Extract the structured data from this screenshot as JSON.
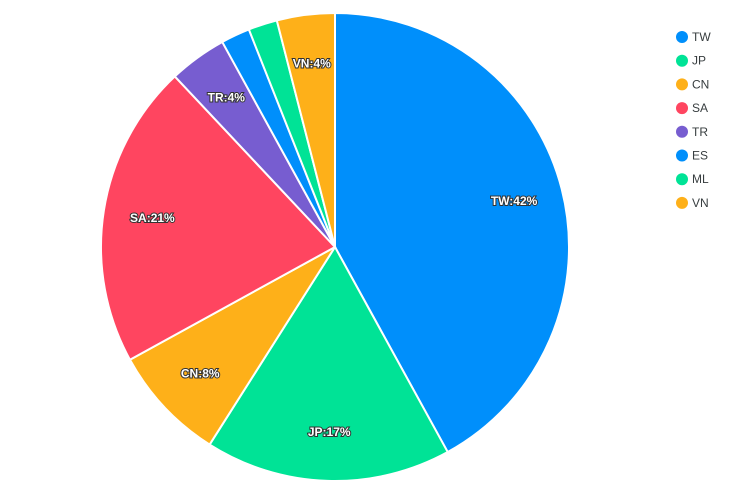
{
  "chart_data": {
    "type": "pie",
    "categories": [
      "TW",
      "JP",
      "CN",
      "SA",
      "TR",
      "ES",
      "ML",
      "VN"
    ],
    "values": [
      42,
      17,
      8,
      21,
      4,
      2,
      2,
      4
    ],
    "labels": [
      "TW:42%",
      "JP:17%",
      "CN:8%",
      "SA:21%",
      "TR:4%",
      "",
      "",
      "VN:4%"
    ],
    "colors": [
      "#008ffb",
      "#00e396",
      "#feb019",
      "#ff4560",
      "#775dd0",
      "#008ffb",
      "#00e396",
      "#feb019"
    ],
    "legend_position": "top-right"
  }
}
